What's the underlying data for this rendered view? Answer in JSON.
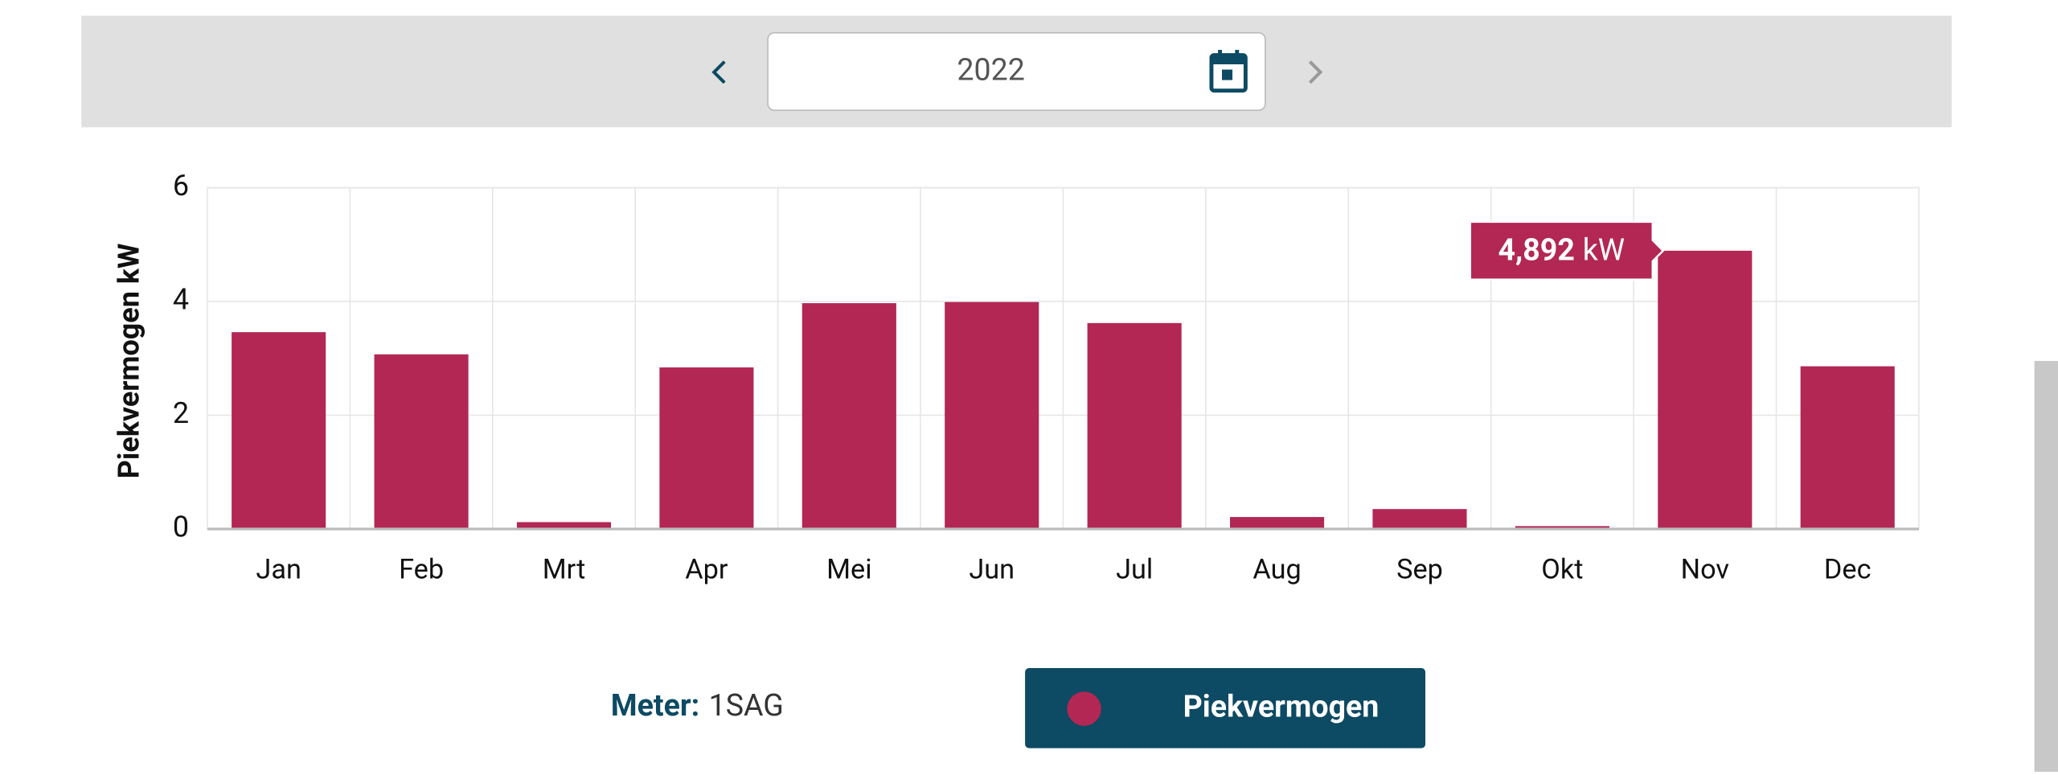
{
  "period": "2022",
  "meter": {
    "label": "Meter:",
    "value": "1SAG"
  },
  "chart_data": {
    "type": "bar",
    "ylabel": "Piekvermogen kW",
    "categories": [
      "Jan",
      "Feb",
      "Mrt",
      "Apr",
      "Mei",
      "Jun",
      "Jul",
      "Aug",
      "Sep",
      "Okt",
      "Nov",
      "Dec"
    ],
    "series": [
      {
        "name": "Piekvermogen",
        "color": "#b22754",
        "values": [
          3.46,
          3.07,
          0.12,
          2.84,
          3.97,
          3.99,
          3.62,
          0.21,
          0.35,
          0.05,
          4.892,
          2.86
        ],
        "value_labels": [
          null,
          null,
          null,
          null,
          null,
          null,
          null,
          null,
          null,
          null,
          "4,892",
          null
        ]
      }
    ],
    "tooltip_unit": "kW",
    "ylim": [
      0,
      6
    ],
    "yticks": [
      0,
      2,
      4,
      6
    ],
    "grid": true
  }
}
